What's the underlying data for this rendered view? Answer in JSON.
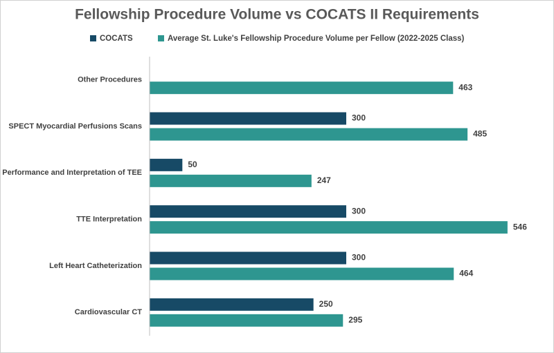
{
  "chart_data": {
    "type": "hbar",
    "title": "Fellowship Procedure Volume vs COCATS II Requirements",
    "categories": [
      "Other Procedures",
      "SPECT Myocardial Perfusions Scans",
      "Performance and Interpretation of TEE",
      "TTE Interpretation",
      "Left Heart Catheterization",
      "Cardiovascular CT"
    ],
    "series": [
      {
        "name": "COCATS",
        "color": "#174a66",
        "values": [
          null,
          300,
          50,
          300,
          300,
          250
        ]
      },
      {
        "name": "Average St. Luke's Fellowship Procedure Volume per Fellow (2022-2025 Class)",
        "color": "#2e9690",
        "values": [
          463,
          485,
          247,
          546,
          464,
          295
        ]
      }
    ],
    "xlim": [
      0,
      600
    ],
    "legend": "top"
  }
}
